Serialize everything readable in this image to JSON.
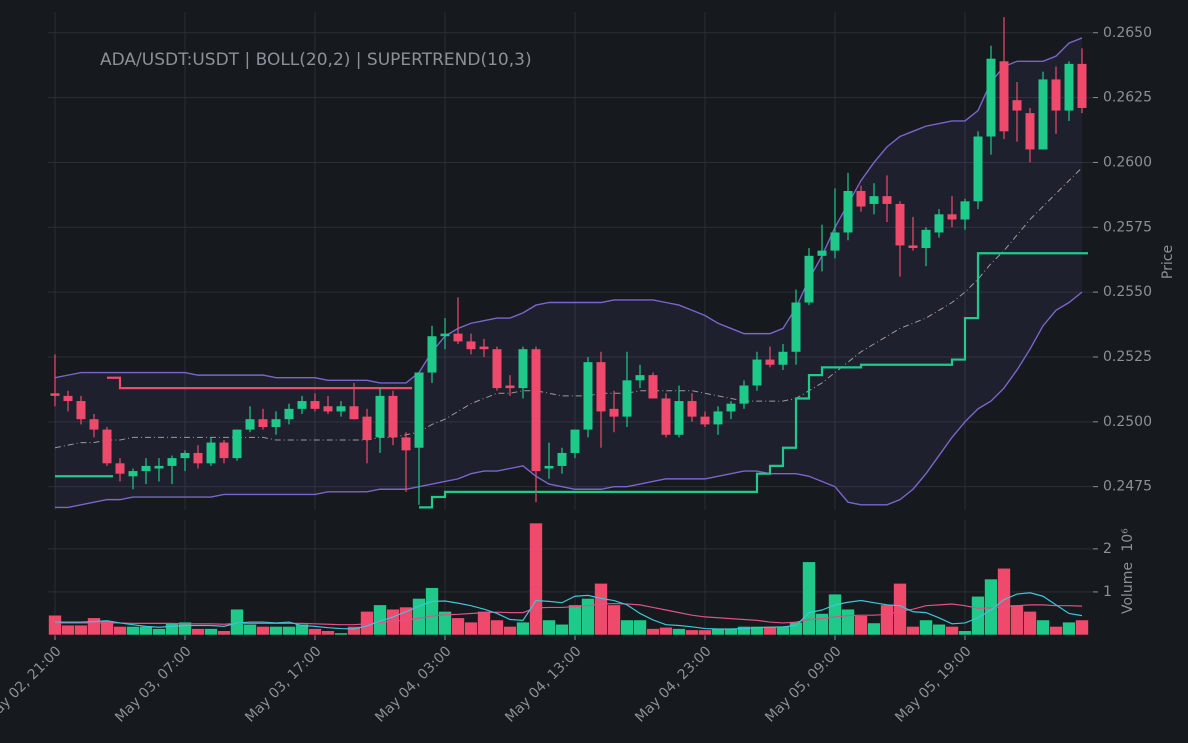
{
  "chart_data": {
    "type": "candlestick",
    "title": "ADA/USDT:USDT | BOLL(20,2) | SUPERTREND(10,3)",
    "ylabel": "Price",
    "categories": [
      "May 02, 21:00",
      null,
      null,
      null,
      null,
      null,
      null,
      null,
      null,
      null,
      "May 03, 07:00",
      null,
      null,
      null,
      null,
      null,
      null,
      null,
      null,
      null,
      "May 03, 17:00",
      null,
      null,
      null,
      null,
      null,
      null,
      null,
      null,
      null,
      "May 04, 03:00",
      null,
      null,
      null,
      null,
      null,
      null,
      null,
      null,
      null,
      "May 04, 13:00",
      null,
      null,
      null,
      null,
      null,
      null,
      null,
      null,
      null,
      "May 04, 23:00",
      null,
      null,
      null,
      null,
      null,
      null,
      null,
      null,
      null,
      "May 05, 09:00",
      null,
      null,
      null,
      null,
      null,
      null,
      null,
      null,
      null,
      "May 05, 19:00",
      null,
      null,
      null,
      null,
      null,
      null,
      null,
      null,
      null
    ],
    "ohlc": [
      [
        0.2511,
        0.2526,
        0.2506,
        0.251
      ],
      [
        0.251,
        0.2512,
        0.2504,
        0.2508
      ],
      [
        0.2508,
        0.251,
        0.2499,
        0.2501
      ],
      [
        0.2501,
        0.2503,
        0.2494,
        0.2497
      ],
      [
        0.2497,
        0.2498,
        0.2483,
        0.2484
      ],
      [
        0.2484,
        0.2486,
        0.2477,
        0.248
      ],
      [
        0.2479,
        0.2482,
        0.2474,
        0.2481
      ],
      [
        0.2481,
        0.2486,
        0.2476,
        0.2483
      ],
      [
        0.2482,
        0.2486,
        0.2477,
        0.2483
      ],
      [
        0.2483,
        0.2487,
        0.2476,
        0.2486
      ],
      [
        0.2486,
        0.2489,
        0.2481,
        0.2488
      ],
      [
        0.2488,
        0.2491,
        0.2482,
        0.2484
      ],
      [
        0.2484,
        0.2494,
        0.2483,
        0.2492
      ],
      [
        0.2492,
        0.2493,
        0.2484,
        0.2486
      ],
      [
        0.2486,
        0.2497,
        0.2485,
        0.2497
      ],
      [
        0.2497,
        0.2506,
        0.2496,
        0.2501
      ],
      [
        0.2501,
        0.2505,
        0.2497,
        0.2498
      ],
      [
        0.2498,
        0.2504,
        0.2495,
        0.2501
      ],
      [
        0.2501,
        0.2507,
        0.2499,
        0.2505
      ],
      [
        0.2505,
        0.251,
        0.2503,
        0.2508
      ],
      [
        0.2508,
        0.2511,
        0.2504,
        0.2505
      ],
      [
        0.2506,
        0.251,
        0.2503,
        0.2504
      ],
      [
        0.2504,
        0.2508,
        0.2502,
        0.2506
      ],
      [
        0.2506,
        0.2515,
        0.2501,
        0.2501
      ],
      [
        0.2502,
        0.2505,
        0.2484,
        0.2493
      ],
      [
        0.2494,
        0.2513,
        0.2488,
        0.251
      ],
      [
        0.251,
        0.2512,
        0.2491,
        0.2494
      ],
      [
        0.2494,
        0.2496,
        0.2473,
        0.2489
      ],
      [
        0.249,
        0.2519,
        0.2468,
        0.2519
      ],
      [
        0.2519,
        0.2537,
        0.2515,
        0.2533
      ],
      [
        0.2533,
        0.254,
        0.2528,
        0.2534
      ],
      [
        0.2534,
        0.2548,
        0.253,
        0.2531
      ],
      [
        0.2531,
        0.2534,
        0.2526,
        0.2528
      ],
      [
        0.2529,
        0.2532,
        0.2525,
        0.2528
      ],
      [
        0.2528,
        0.2529,
        0.2512,
        0.2513
      ],
      [
        0.2514,
        0.2518,
        0.251,
        0.2513
      ],
      [
        0.2513,
        0.2529,
        0.2509,
        0.2528
      ],
      [
        0.2528,
        0.2529,
        0.2469,
        0.2481
      ],
      [
        0.2482,
        0.2492,
        0.2478,
        0.2483
      ],
      [
        0.2483,
        0.249,
        0.248,
        0.2488
      ],
      [
        0.2488,
        0.2497,
        0.2486,
        0.2497
      ],
      [
        0.2497,
        0.2525,
        0.2494,
        0.2523
      ],
      [
        0.2523,
        0.2527,
        0.249,
        0.2504
      ],
      [
        0.2505,
        0.2512,
        0.2496,
        0.2502
      ],
      [
        0.2502,
        0.2527,
        0.2498,
        0.2516
      ],
      [
        0.2516,
        0.2522,
        0.2513,
        0.2518
      ],
      [
        0.2518,
        0.2519,
        0.2509,
        0.2509
      ],
      [
        0.2509,
        0.2511,
        0.2494,
        0.2495
      ],
      [
        0.2495,
        0.2514,
        0.2494,
        0.2508
      ],
      [
        0.2508,
        0.2511,
        0.25,
        0.2502
      ],
      [
        0.2502,
        0.2504,
        0.2498,
        0.2499
      ],
      [
        0.2499,
        0.2506,
        0.2495,
        0.2504
      ],
      [
        0.2504,
        0.2508,
        0.2501,
        0.2507
      ],
      [
        0.2507,
        0.2516,
        0.2505,
        0.2514
      ],
      [
        0.2514,
        0.2527,
        0.2512,
        0.2524
      ],
      [
        0.2524,
        0.2529,
        0.2521,
        0.2522
      ],
      [
        0.2522,
        0.253,
        0.252,
        0.2527
      ],
      [
        0.2527,
        0.2551,
        0.2522,
        0.2546
      ],
      [
        0.2546,
        0.2567,
        0.2545,
        0.2564
      ],
      [
        0.2564,
        0.2576,
        0.2558,
        0.2566
      ],
      [
        0.2566,
        0.259,
        0.2563,
        0.2573
      ],
      [
        0.2573,
        0.2596,
        0.257,
        0.2589
      ],
      [
        0.2589,
        0.2591,
        0.2581,
        0.2583
      ],
      [
        0.2584,
        0.2592,
        0.258,
        0.2587
      ],
      [
        0.2587,
        0.2595,
        0.2577,
        0.2584
      ],
      [
        0.2584,
        0.2585,
        0.2556,
        0.2568
      ],
      [
        0.2568,
        0.2579,
        0.2566,
        0.2567
      ],
      [
        0.2567,
        0.2575,
        0.256,
        0.2574
      ],
      [
        0.2573,
        0.2582,
        0.2571,
        0.258
      ],
      [
        0.258,
        0.2587,
        0.2575,
        0.2578
      ],
      [
        0.2578,
        0.2586,
        0.2574,
        0.2585
      ],
      [
        0.2585,
        0.2612,
        0.2582,
        0.261
      ],
      [
        0.261,
        0.2645,
        0.2603,
        0.264
      ],
      [
        0.2639,
        0.2656,
        0.2609,
        0.2612
      ],
      [
        0.2624,
        0.2631,
        0.2608,
        0.262
      ],
      [
        0.2619,
        0.2621,
        0.26,
        0.2605
      ],
      [
        0.2605,
        0.2635,
        0.2605,
        0.2632
      ],
      [
        0.2632,
        0.2637,
        0.2611,
        0.262
      ],
      [
        0.262,
        0.2639,
        0.2616,
        0.2638
      ],
      [
        0.2638,
        0.2644,
        0.2619,
        0.2621
      ]
    ],
    "up_color": "#1fc98a",
    "down_color": "#ef4a6c",
    "ylim": [
      0.2466,
      0.2658
    ],
    "yticks": [
      0.2475,
      {
        "value": 0.25,
        "label": "0.2500"
      },
      0.2525,
      {
        "value": 0.255,
        "label": "0.2550"
      },
      0.2575,
      {
        "value": 0.26,
        "label": "0.2600"
      },
      0.2625,
      {
        "value": 0.265,
        "label": "0.2650"
      }
    ],
    "grid": true,
    "bollinger": {
      "color": "#7766cc",
      "middle_color": "#9a9a9a",
      "fill": "rgba(110,100,190,0.10)",
      "upper": [
        0.2517,
        0.2518,
        0.2519,
        0.2519,
        0.2519,
        0.2519,
        0.2519,
        0.2519,
        0.2519,
        0.2519,
        0.2519,
        0.2518,
        0.2518,
        0.2518,
        0.2518,
        0.2518,
        0.2518,
        0.2517,
        0.2517,
        0.2517,
        0.2517,
        0.2516,
        0.2516,
        0.2516,
        0.2516,
        0.2515,
        0.2515,
        0.2515,
        0.2519,
        0.2527,
        0.2533,
        0.2536,
        0.2538,
        0.2539,
        0.254,
        0.254,
        0.2542,
        0.2545,
        0.2546,
        0.2546,
        0.2546,
        0.2546,
        0.2546,
        0.2547,
        0.2547,
        0.2547,
        0.2547,
        0.2546,
        0.2545,
        0.2543,
        0.2541,
        0.2538,
        0.2536,
        0.2534,
        0.2534,
        0.2534,
        0.2536,
        0.2544,
        0.2555,
        0.2564,
        0.2575,
        0.2584,
        0.2593,
        0.26,
        0.2606,
        0.261,
        0.2612,
        0.2614,
        0.2615,
        0.2616,
        0.2616,
        0.262,
        0.2631,
        0.2637,
        0.2639,
        0.2639,
        0.2639,
        0.2641,
        0.2646,
        0.2648
      ],
      "middle": [
        0.249,
        0.2491,
        0.2492,
        0.2492,
        0.2493,
        0.2493,
        0.2494,
        0.2494,
        0.2494,
        0.2494,
        0.2494,
        0.2494,
        0.2494,
        0.2494,
        0.2494,
        0.2494,
        0.2494,
        0.2493,
        0.2493,
        0.2493,
        0.2493,
        0.2493,
        0.2493,
        0.2493,
        0.2493,
        0.2494,
        0.2494,
        0.2495,
        0.2496,
        0.2499,
        0.2501,
        0.2504,
        0.2507,
        0.2509,
        0.2511,
        0.2511,
        0.2512,
        0.2512,
        0.2511,
        0.251,
        0.251,
        0.251,
        0.2511,
        0.2511,
        0.2511,
        0.2512,
        0.2512,
        0.2512,
        0.2512,
        0.2512,
        0.2511,
        0.251,
        0.2509,
        0.2508,
        0.2508,
        0.2508,
        0.2508,
        0.2509,
        0.2512,
        0.2515,
        0.2519,
        0.2523,
        0.2527,
        0.253,
        0.2533,
        0.2536,
        0.2538,
        0.254,
        0.2543,
        0.2546,
        0.255,
        0.2555,
        0.2561,
        0.2566,
        0.2572,
        0.2578,
        0.2583,
        0.2588,
        0.2593,
        0.2598
      ],
      "lower": [
        0.2467,
        0.2467,
        0.2468,
        0.2469,
        0.247,
        0.247,
        0.2471,
        0.2471,
        0.2471,
        0.2471,
        0.2471,
        0.2471,
        0.2471,
        0.2472,
        0.2472,
        0.2472,
        0.2472,
        0.2472,
        0.2472,
        0.2472,
        0.2472,
        0.2473,
        0.2473,
        0.2473,
        0.2473,
        0.2474,
        0.2474,
        0.2474,
        0.2475,
        0.2476,
        0.2477,
        0.2478,
        0.248,
        0.2481,
        0.2481,
        0.2482,
        0.2483,
        0.2479,
        0.2476,
        0.2475,
        0.2474,
        0.2474,
        0.2474,
        0.2475,
        0.2475,
        0.2476,
        0.2477,
        0.2478,
        0.2478,
        0.2478,
        0.2478,
        0.2479,
        0.248,
        0.2481,
        0.2481,
        0.248,
        0.248,
        0.248,
        0.2479,
        0.2477,
        0.2475,
        0.2469,
        0.2468,
        0.2468,
        0.2468,
        0.247,
        0.2474,
        0.248,
        0.2487,
        0.2494,
        0.25,
        0.2505,
        0.2508,
        0.2513,
        0.252,
        0.2528,
        0.2537,
        0.2543,
        0.2546,
        0.255
      ]
    },
    "supertrend": {
      "up_color": "#22c98a",
      "down_color": "#ef4a6c",
      "up": [
        0.2479,
        0.2479,
        0.2479,
        0.2479,
        0.2479,
        null,
        null,
        null,
        null,
        null,
        null,
        null,
        null,
        null,
        null,
        null,
        null,
        null,
        null,
        null,
        null,
        null,
        null,
        null,
        null,
        null,
        null,
        null,
        0.2467,
        0.2471,
        0.2473,
        0.2473,
        0.2473,
        0.2473,
        0.2473,
        0.2473,
        0.2473,
        0.2473,
        0.2473,
        0.2473,
        0.2473,
        0.2473,
        0.2473,
        0.2473,
        0.2473,
        0.2473,
        0.2473,
        0.2473,
        0.2473,
        0.2473,
        0.2473,
        0.2473,
        0.2473,
        0.2473,
        0.248,
        0.2483,
        0.249,
        0.2509,
        0.2518,
        0.2521,
        0.2521,
        0.2521,
        0.2522,
        0.2522,
        0.2522,
        0.2522,
        0.2522,
        0.2522,
        0.2522,
        0.2524,
        0.254,
        0.2565,
        0.2565,
        0.2565,
        0.2565,
        0.2565,
        0.2565,
        0.2565,
        0.2565,
        0.2565
      ],
      "down": [
        null,
        null,
        null,
        null,
        0.2517,
        0.2513,
        0.2513,
        0.2513,
        0.2513,
        0.2513,
        0.2513,
        0.2513,
        0.2513,
        0.2513,
        0.2513,
        0.2513,
        0.2513,
        0.2513,
        0.2513,
        0.2513,
        0.2513,
        0.2513,
        0.2513,
        0.2513,
        0.2513,
        0.2513,
        0.2513,
        0.2513,
        null,
        null,
        null,
        null,
        null,
        null,
        null,
        null,
        null,
        null,
        null,
        null,
        null,
        null,
        null,
        null,
        null,
        null,
        null,
        null,
        null,
        null,
        null,
        null,
        null,
        null,
        null,
        null,
        null,
        null,
        null,
        null,
        null,
        null,
        null,
        null,
        null,
        null,
        null,
        null,
        null,
        null,
        null,
        null,
        null,
        null,
        null,
        null,
        null,
        null,
        null,
        null
      ]
    },
    "volume": {
      "label": "Volume",
      "offset_label": "10⁶",
      "ylim": [
        0,
        2.67
      ],
      "yticks": [
        1,
        2
      ],
      "values": [
        0.46,
        0.23,
        0.23,
        0.4,
        0.33,
        0.2,
        0.2,
        0.2,
        0.15,
        0.28,
        0.3,
        0.15,
        0.15,
        0.1,
        0.6,
        0.25,
        0.2,
        0.2,
        0.2,
        0.25,
        0.15,
        0.1,
        0.05,
        0.2,
        0.55,
        0.7,
        0.6,
        0.65,
        0.85,
        1.1,
        0.55,
        0.4,
        0.3,
        0.55,
        0.35,
        0.2,
        0.3,
        2.6,
        0.35,
        0.25,
        0.7,
        0.85,
        1.2,
        0.7,
        0.35,
        0.35,
        0.15,
        0.18,
        0.15,
        0.12,
        0.12,
        0.15,
        0.15,
        0.2,
        0.2,
        0.2,
        0.2,
        0.3,
        1.7,
        0.5,
        0.95,
        0.6,
        0.45,
        0.28,
        0.7,
        1.2,
        0.2,
        0.35,
        0.25,
        0.2,
        0.1,
        0.9,
        1.3,
        1.55,
        0.7,
        0.55,
        0.35,
        0.2,
        0.3,
        0.35
      ],
      "ma_lines": [
        {
          "color": "#e0508a",
          "values": [
            0.28,
            0.28,
            0.28,
            0.28,
            0.28,
            0.28,
            0.27,
            0.27,
            0.27,
            0.27,
            0.26,
            0.26,
            0.26,
            0.25,
            0.27,
            0.27,
            0.27,
            0.27,
            0.27,
            0.27,
            0.26,
            0.25,
            0.24,
            0.24,
            0.26,
            0.29,
            0.32,
            0.35,
            0.39,
            0.44,
            0.47,
            0.48,
            0.5,
            0.52,
            0.53,
            0.52,
            0.52,
            0.63,
            0.64,
            0.64,
            0.66,
            0.68,
            0.72,
            0.73,
            0.72,
            0.7,
            0.64,
            0.58,
            0.52,
            0.46,
            0.42,
            0.4,
            0.38,
            0.36,
            0.34,
            0.3,
            0.28,
            0.3,
            0.36,
            0.38,
            0.42,
            0.45,
            0.46,
            0.46,
            0.48,
            0.55,
            0.6,
            0.68,
            0.7,
            0.72,
            0.68,
            0.62,
            0.63,
            0.66,
            0.68,
            0.7,
            0.7,
            0.68,
            0.68,
            0.67
          ]
        },
        {
          "color": "#3ec6d8",
          "values": [
            0.3,
            0.3,
            0.3,
            0.31,
            0.33,
            0.28,
            0.24,
            0.2,
            0.18,
            0.2,
            0.22,
            0.22,
            0.22,
            0.2,
            0.28,
            0.3,
            0.3,
            0.28,
            0.3,
            0.22,
            0.2,
            0.17,
            0.15,
            0.14,
            0.21,
            0.32,
            0.42,
            0.54,
            0.67,
            0.78,
            0.79,
            0.74,
            0.68,
            0.6,
            0.5,
            0.36,
            0.34,
            0.8,
            0.78,
            0.75,
            0.9,
            0.92,
            0.85,
            0.8,
            0.7,
            0.5,
            0.35,
            0.24,
            0.22,
            0.19,
            0.15,
            0.14,
            0.14,
            0.15,
            0.17,
            0.18,
            0.19,
            0.22,
            0.52,
            0.58,
            0.7,
            0.76,
            0.8,
            0.75,
            0.7,
            0.68,
            0.54,
            0.52,
            0.4,
            0.26,
            0.28,
            0.4,
            0.58,
            0.82,
            0.95,
            0.98,
            0.9,
            0.7,
            0.5,
            0.45
          ]
        }
      ]
    }
  }
}
